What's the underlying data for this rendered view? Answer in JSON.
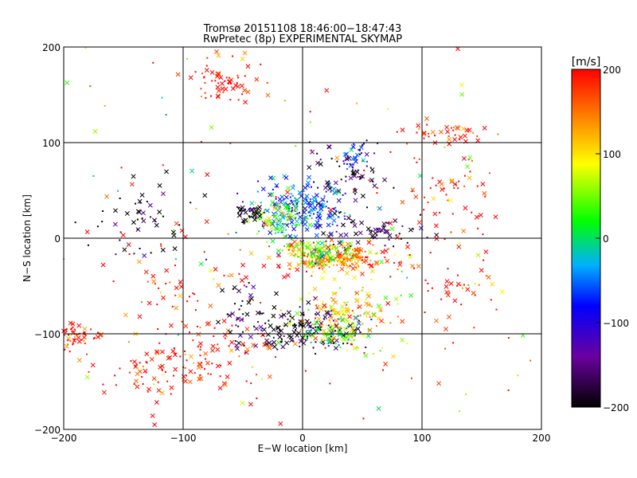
{
  "chart_data": [
    {
      "type": "scatter",
      "title": "Tromsø 20151108 18:46:00−18:47:43",
      "subtitle": "RwPretec (8p) EXPERIMENTAL SKYMAP",
      "xlabel": "E−W location [km]",
      "ylabel": "N−S location [km]",
      "xlim": [
        -200,
        200
      ],
      "ylim": [
        -200,
        200
      ],
      "xticks": [
        "−200",
        "−100",
        "0",
        "100",
        "200"
      ],
      "yticks": [
        "200",
        "100",
        "0",
        "−100",
        "−200"
      ],
      "grid": true,
      "marker_types": [
        "cross",
        "dot"
      ],
      "color_by": "velocity",
      "clusters": [
        {
          "x": 0,
          "y": 30,
          "spread_x": 18,
          "spread_y": 14,
          "v": -60,
          "n": 220
        },
        {
          "x": -20,
          "y": 20,
          "spread_x": 12,
          "spread_y": 10,
          "v": 40,
          "n": 80
        },
        {
          "x": 25,
          "y": -20,
          "spread_x": 25,
          "spread_y": 8,
          "v": 140,
          "n": 250
        },
        {
          "x": 10,
          "y": -15,
          "spread_x": 12,
          "spread_y": 6,
          "v": 40,
          "n": 90
        },
        {
          "x": -45,
          "y": 25,
          "spread_x": 8,
          "spread_y": 5,
          "v": -200,
          "n": 45
        },
        {
          "x": 60,
          "y": 5,
          "spread_x": 20,
          "spread_y": 8,
          "v": -180,
          "n": 60
        },
        {
          "x": 40,
          "y": 65,
          "spread_x": 15,
          "spread_y": 18,
          "v": -190,
          "n": 70
        },
        {
          "x": 45,
          "y": 85,
          "spread_x": 8,
          "spread_y": 8,
          "v": -90,
          "n": 30
        },
        {
          "x": 0,
          "y": -95,
          "spread_x": 25,
          "spread_y": 12,
          "v": -190,
          "n": 150
        },
        {
          "x": 35,
          "y": -80,
          "spread_x": 22,
          "spread_y": 15,
          "v": 110,
          "n": 120
        },
        {
          "x": 25,
          "y": -100,
          "spread_x": 15,
          "spread_y": 8,
          "v": 30,
          "n": 70
        },
        {
          "x": -65,
          "y": 165,
          "spread_x": 15,
          "spread_y": 12,
          "v": 200,
          "n": 60
        },
        {
          "x": 125,
          "y": 110,
          "spread_x": 18,
          "spread_y": 6,
          "v": 200,
          "n": 40
        },
        {
          "x": -190,
          "y": -100,
          "spread_x": 12,
          "spread_y": 8,
          "v": 200,
          "n": 60
        },
        {
          "x": -120,
          "y": -140,
          "spread_x": 25,
          "spread_y": 12,
          "v": 200,
          "n": 70
        },
        {
          "x": -70,
          "y": -120,
          "spread_x": 25,
          "spread_y": 15,
          "v": 200,
          "n": 60
        },
        {
          "x": 130,
          "y": -50,
          "spread_x": 20,
          "spread_y": 20,
          "v": 200,
          "n": 40
        },
        {
          "x": 120,
          "y": 40,
          "spread_x": 25,
          "spread_y": 25,
          "v": 200,
          "n": 50
        },
        {
          "x": -130,
          "y": 10,
          "spread_x": 25,
          "spread_y": 25,
          "v": -200,
          "n": 50
        },
        {
          "x": -100,
          "y": -50,
          "spread_x": 30,
          "spread_y": 30,
          "v": 200,
          "n": 60
        },
        {
          "x": -50,
          "y": -80,
          "spread_x": 12,
          "spread_y": 20,
          "v": -200,
          "n": 40
        },
        {
          "x": 0,
          "y": 0,
          "spread_x": 150,
          "spread_y": 150,
          "v": 200,
          "n": 160
        },
        {
          "x": 0,
          "y": 0,
          "spread_x": 150,
          "spread_y": 150,
          "v": 60,
          "n": 90
        }
      ]
    },
    {
      "type": "colorbar",
      "label": "[m/s]",
      "range": [
        -200,
        200
      ],
      "ticks": [
        "200",
        "100",
        "0",
        "−100",
        "−200"
      ],
      "colormap": [
        "#000000",
        "#6a00a0",
        "#0000ff",
        "#00b0ff",
        "#00ff00",
        "#ffff00",
        "#ff8000",
        "#ff0000"
      ]
    }
  ]
}
